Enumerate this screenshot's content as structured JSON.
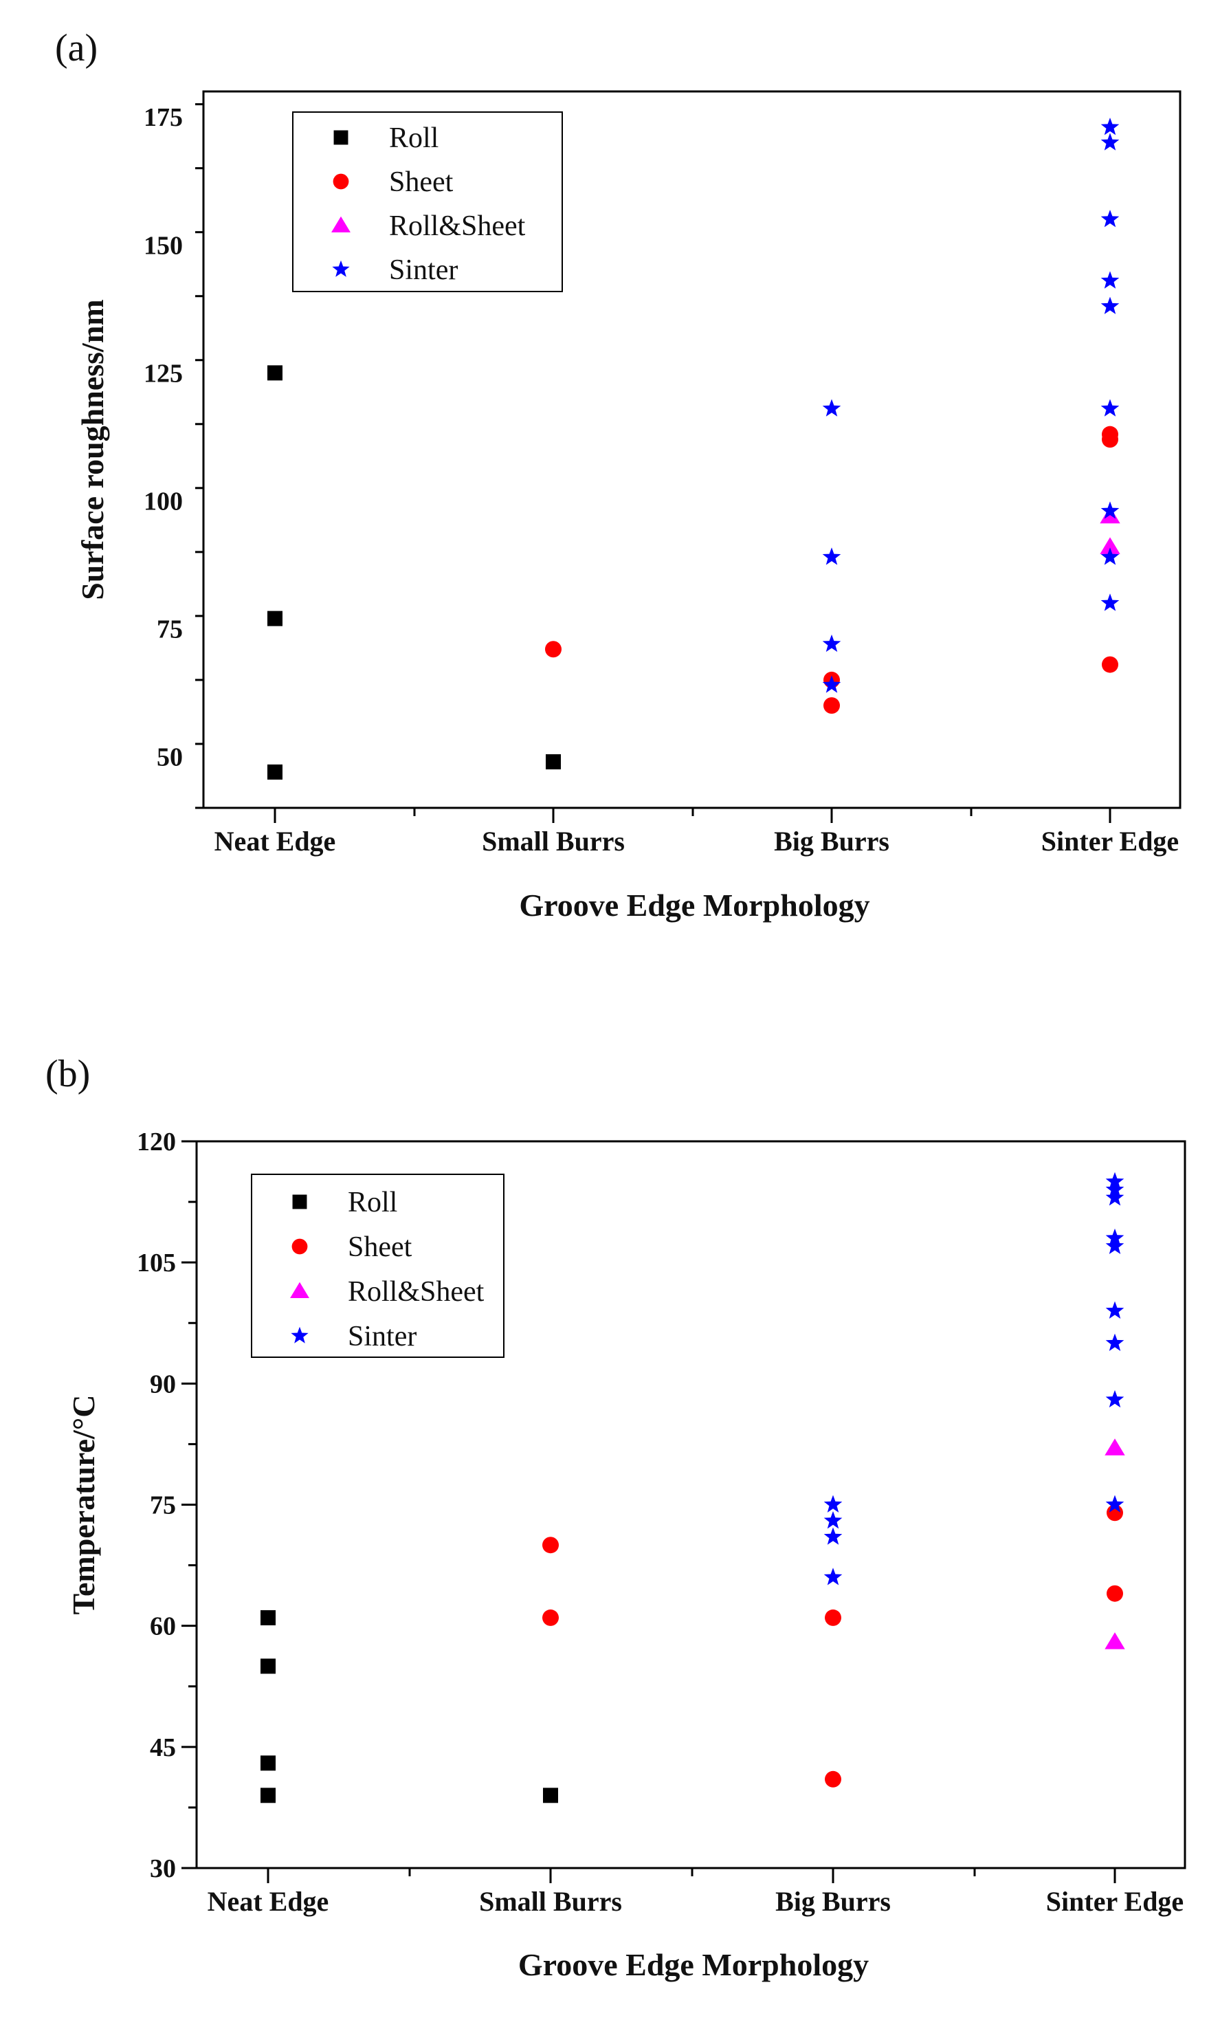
{
  "chart_data": [
    {
      "panel": "(a)",
      "type": "scatter",
      "categories": [
        "Neat Edge",
        "Small Burrs",
        "Big Burrs",
        "Sinter Edge"
      ],
      "xlabel": "Groove Edge Morphology",
      "ylabel": "Surface roughness/nm",
      "ylim": [
        40,
        180
      ],
      "yticks": [
        50,
        75,
        100,
        125,
        150,
        175
      ],
      "legend_position": "top-left",
      "series": [
        {
          "name": "Roll",
          "marker": "square",
          "color": "#000000",
          "points": [
            {
              "category": "Neat Edge",
              "value": 125
            },
            {
              "category": "Neat Edge",
              "value": 77
            },
            {
              "category": "Neat Edge",
              "value": 47
            },
            {
              "category": "Small Burrs",
              "value": 49
            }
          ]
        },
        {
          "name": "Sheet",
          "marker": "circle",
          "color": "#ff0000",
          "points": [
            {
              "category": "Small Burrs",
              "value": 71
            },
            {
              "category": "Big Burrs",
              "value": 65
            },
            {
              "category": "Big Burrs",
              "value": 60
            },
            {
              "category": "Sinter Edge",
              "value": 113
            },
            {
              "category": "Sinter Edge",
              "value": 112
            },
            {
              "category": "Sinter Edge",
              "value": 68
            }
          ]
        },
        {
          "name": "Roll&Sheet",
          "marker": "triangle",
          "color": "#ff00ff",
          "points": [
            {
              "category": "Sinter Edge",
              "value": 97
            },
            {
              "category": "Sinter Edge",
              "value": 91
            }
          ]
        },
        {
          "name": "Sinter",
          "marker": "star",
          "color": "#0000ff",
          "points": [
            {
              "category": "Big Burrs",
              "value": 118
            },
            {
              "category": "Big Burrs",
              "value": 89
            },
            {
              "category": "Big Burrs",
              "value": 72
            },
            {
              "category": "Big Burrs",
              "value": 64
            },
            {
              "category": "Sinter Edge",
              "value": 173
            },
            {
              "category": "Sinter Edge",
              "value": 170
            },
            {
              "category": "Sinter Edge",
              "value": 155
            },
            {
              "category": "Sinter Edge",
              "value": 143
            },
            {
              "category": "Sinter Edge",
              "value": 138
            },
            {
              "category": "Sinter Edge",
              "value": 118
            },
            {
              "category": "Sinter Edge",
              "value": 98
            },
            {
              "category": "Sinter Edge",
              "value": 89
            },
            {
              "category": "Sinter Edge",
              "value": 80
            }
          ]
        }
      ]
    },
    {
      "panel": "(b)",
      "type": "scatter",
      "categories": [
        "Neat Edge",
        "Small Burrs",
        "Big Burrs",
        "Sinter Edge"
      ],
      "xlabel": "Groove Edge Morphology",
      "ylabel": "Temperature/°C",
      "ylim": [
        30,
        120
      ],
      "yticks": [
        30,
        45,
        60,
        75,
        90,
        105,
        120
      ],
      "legend_position": "top-left",
      "series": [
        {
          "name": "Roll",
          "marker": "square",
          "color": "#000000",
          "points": [
            {
              "category": "Neat Edge",
              "value": 61
            },
            {
              "category": "Neat Edge",
              "value": 55
            },
            {
              "category": "Neat Edge",
              "value": 43
            },
            {
              "category": "Neat Edge",
              "value": 39
            },
            {
              "category": "Small Burrs",
              "value": 39
            }
          ]
        },
        {
          "name": "Sheet",
          "marker": "circle",
          "color": "#ff0000",
          "points": [
            {
              "category": "Small Burrs",
              "value": 70
            },
            {
              "category": "Small Burrs",
              "value": 61
            },
            {
              "category": "Big Burrs",
              "value": 61
            },
            {
              "category": "Big Burrs",
              "value": 41
            },
            {
              "category": "Sinter Edge",
              "value": 74
            },
            {
              "category": "Sinter Edge",
              "value": 64
            }
          ]
        },
        {
          "name": "Roll&Sheet",
          "marker": "triangle",
          "color": "#ff00ff",
          "points": [
            {
              "category": "Sinter Edge",
              "value": 82
            },
            {
              "category": "Sinter Edge",
              "value": 58
            }
          ]
        },
        {
          "name": "Sinter",
          "marker": "star",
          "color": "#0000ff",
          "points": [
            {
              "category": "Big Burrs",
              "value": 75
            },
            {
              "category": "Big Burrs",
              "value": 73
            },
            {
              "category": "Big Burrs",
              "value": 71
            },
            {
              "category": "Big Burrs",
              "value": 66
            },
            {
              "category": "Sinter Edge",
              "value": 115
            },
            {
              "category": "Sinter Edge",
              "value": 114
            },
            {
              "category": "Sinter Edge",
              "value": 113
            },
            {
              "category": "Sinter Edge",
              "value": 108
            },
            {
              "category": "Sinter Edge",
              "value": 107
            },
            {
              "category": "Sinter Edge",
              "value": 99
            },
            {
              "category": "Sinter Edge",
              "value": 95
            },
            {
              "category": "Sinter Edge",
              "value": 88
            },
            {
              "category": "Sinter Edge",
              "value": 75
            }
          ]
        }
      ]
    }
  ]
}
